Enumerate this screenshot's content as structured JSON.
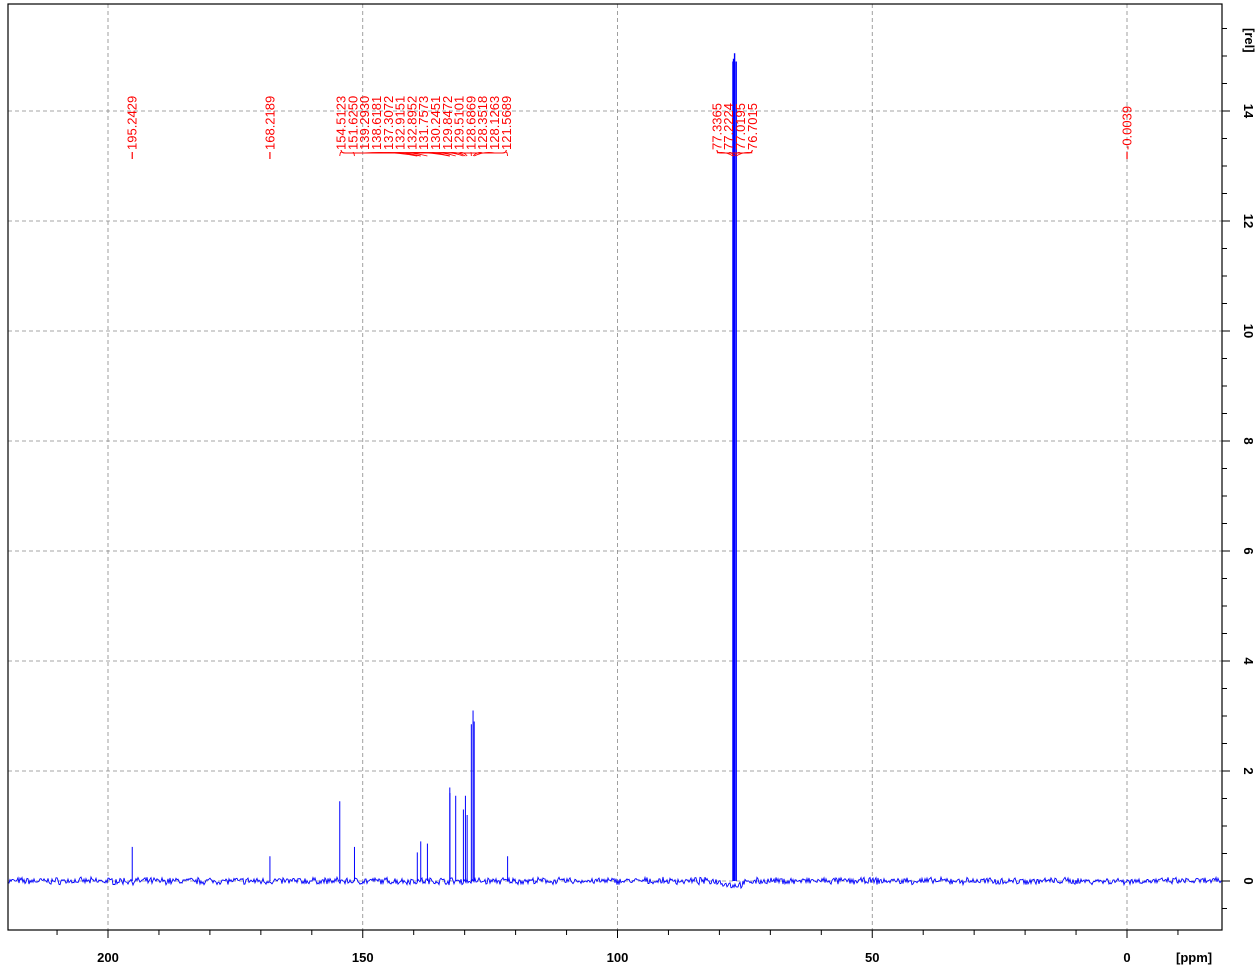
{
  "chart_data": {
    "type": "line",
    "title": "",
    "xlabel": "[ppm]",
    "ylabel": "[rel]",
    "xlim": [
      219,
      -19
    ],
    "ylim": [
      -1,
      15.5
    ],
    "x_reversed": true,
    "grid": true,
    "x_major_ticks": [
      200,
      150,
      100,
      50,
      0
    ],
    "x_minor_step": 10,
    "y_major_ticks": [
      0,
      2,
      4,
      6,
      8,
      10,
      12,
      14
    ],
    "y_minor_step": 0.5,
    "colors": {
      "spectrum": "#0000ff",
      "peak_labels": "#ff0000",
      "grid": "#888888",
      "axes": "#000000"
    },
    "baseline_noise_amplitude": 0.05,
    "peaks": [
      {
        "ppm": 195.2429,
        "height": 0.62
      },
      {
        "ppm": 168.2189,
        "height": 0.45
      },
      {
        "ppm": 154.5123,
        "height": 1.45
      },
      {
        "ppm": 151.625,
        "height": 0.62
      },
      {
        "ppm": 139.293,
        "height": 0.52
      },
      {
        "ppm": 138.6181,
        "height": 0.72
      },
      {
        "ppm": 137.3072,
        "height": 0.68
      },
      {
        "ppm": 132.9151,
        "height": 1.7
      },
      {
        "ppm": 132.8952,
        "height": 1.6
      },
      {
        "ppm": 131.7573,
        "height": 1.55
      },
      {
        "ppm": 130.2451,
        "height": 1.3
      },
      {
        "ppm": 129.8472,
        "height": 1.55
      },
      {
        "ppm": 129.5101,
        "height": 1.2
      },
      {
        "ppm": 128.6869,
        "height": 2.85
      },
      {
        "ppm": 128.3518,
        "height": 3.1
      },
      {
        "ppm": 128.1263,
        "height": 2.9
      },
      {
        "ppm": 121.5689,
        "height": 0.45
      },
      {
        "ppm": 77.3365,
        "height": 14.9
      },
      {
        "ppm": 77.2224,
        "height": 14.95
      },
      {
        "ppm": 77.0195,
        "height": 15.05
      },
      {
        "ppm": 76.7015,
        "height": 14.9
      },
      {
        "ppm": -0.0039,
        "height": 0.03
      }
    ],
    "peak_label_groups": [
      {
        "labels": [
          "195.2429"
        ],
        "peaks": [
          195.2429
        ]
      },
      {
        "labels": [
          "168.2189"
        ],
        "peaks": [
          168.2189
        ]
      },
      {
        "labels": [
          "154.5123",
          "151.6250",
          "139.2930",
          "138.6181",
          "137.3072",
          "132.9151",
          "132.8952",
          "131.7573",
          "130.2451",
          "129.8472",
          "129.5101",
          "128.6869",
          "128.3518",
          "128.1263",
          "121.5689"
        ],
        "peaks": [
          154.5123,
          151.625,
          139.293,
          138.6181,
          137.3072,
          132.9151,
          132.8952,
          131.7573,
          130.2451,
          129.8472,
          129.5101,
          128.6869,
          128.3518,
          128.1263,
          121.5689
        ]
      },
      {
        "labels": [
          "77.3365",
          "77.2224",
          "77.0195",
          "76.7015"
        ],
        "peaks": [
          77.3365,
          77.2224,
          77.0195,
          76.7015
        ]
      },
      {
        "labels": [
          "-0.0039"
        ],
        "peaks": [
          -0.0039
        ]
      }
    ]
  }
}
